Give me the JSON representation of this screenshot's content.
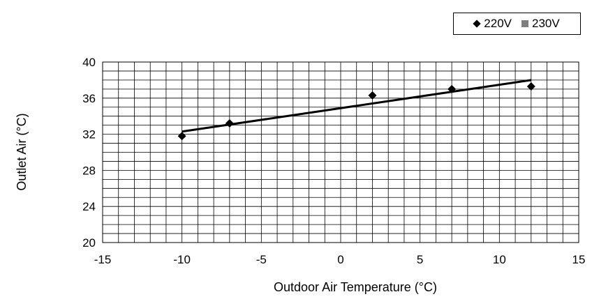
{
  "chart_data": {
    "type": "scatter",
    "xlabel": "Outdoor Air Temperature (°C)",
    "ylabel": "Outlet Air (°C)",
    "xlim": [
      -15,
      15
    ],
    "ylim": [
      20,
      40
    ],
    "xticks": [
      -15,
      -10,
      -5,
      0,
      5,
      10,
      15
    ],
    "yticks": [
      20,
      24,
      28,
      32,
      36,
      40
    ],
    "x_tick_labels": [
      "-15",
      "-10",
      "-5",
      "0",
      "5",
      "10",
      "15"
    ],
    "y_tick_labels": [
      "20",
      "24",
      "28",
      "32",
      "36",
      "40"
    ],
    "grid": true,
    "legend_position": "top-right",
    "series": [
      {
        "name": "220V",
        "marker": "diamond",
        "color": "#000000",
        "points": [
          {
            "x": -10,
            "y": 31.8
          },
          {
            "x": -7,
            "y": 33.2
          },
          {
            "x": 2,
            "y": 36.3
          },
          {
            "x": 7,
            "y": 37.0
          },
          {
            "x": 12,
            "y": 37.3
          }
        ]
      },
      {
        "name": "230V",
        "marker": "square",
        "color": "#7f7f7f",
        "points": []
      }
    ],
    "trendline": {
      "from": {
        "x": -10,
        "y": 32.3
      },
      "to": {
        "x": 12,
        "y": 38.0
      },
      "color": "#000000"
    }
  }
}
